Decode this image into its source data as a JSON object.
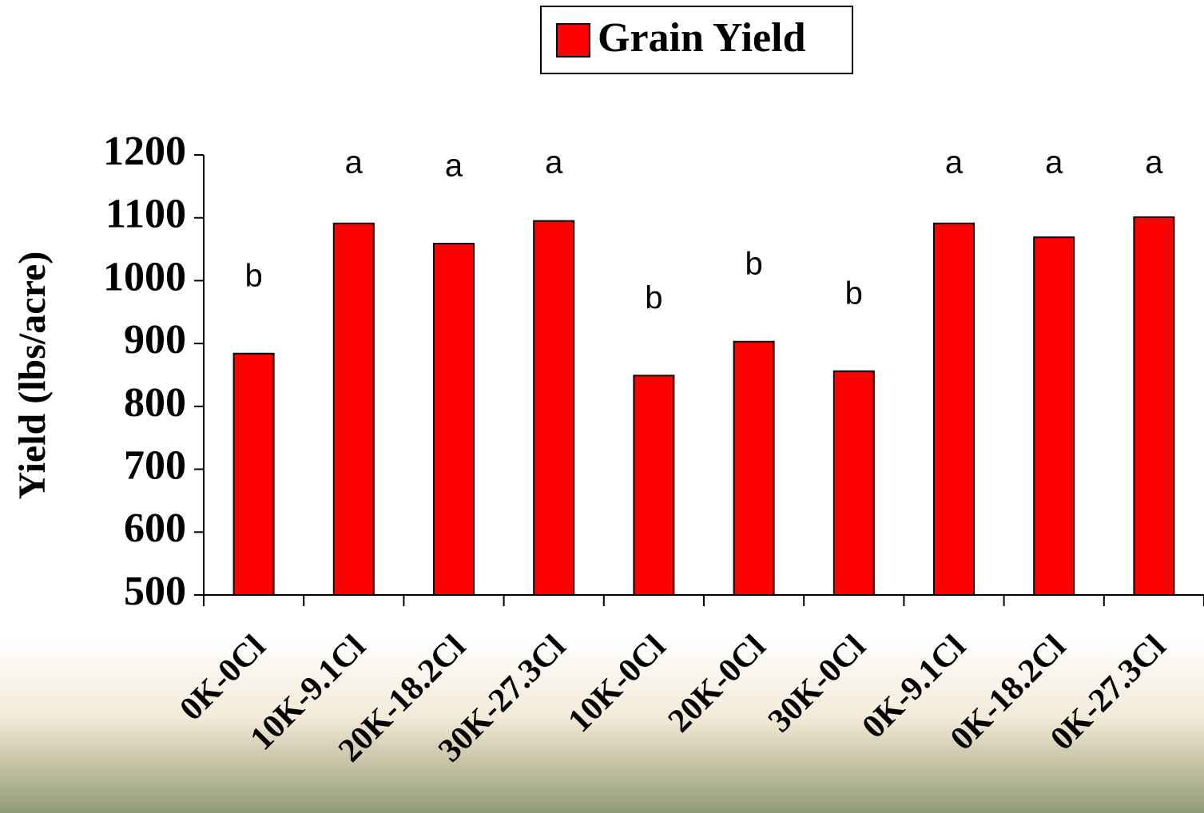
{
  "chart_data": {
    "type": "bar",
    "y_label": "Yield (lbs/acre)",
    "categories": [
      "0K-0Cl",
      "10K-9.1Cl",
      "20K-18.2Cl",
      "30K-27.3Cl",
      "10K-0Cl",
      "20K-0Cl",
      "30K-0Cl",
      "0K-9.1Cl",
      "0K-18.2Cl",
      "0K-27.3Cl"
    ],
    "series": [
      {
        "name": "Grain Yield",
        "color": "#ff0000",
        "values": [
          884,
          1091,
          1059,
          1095,
          849,
          903,
          856,
          1091,
          1069,
          1101
        ]
      }
    ],
    "annotations": [
      "b",
      "a",
      "a",
      "a",
      "b",
      "b",
      "b",
      "a",
      "a",
      "a"
    ],
    "ylim": [
      500,
      1200
    ],
    "yticks": [
      500,
      600,
      700,
      800,
      900,
      1000,
      1100,
      1200
    ],
    "legend": "top"
  }
}
